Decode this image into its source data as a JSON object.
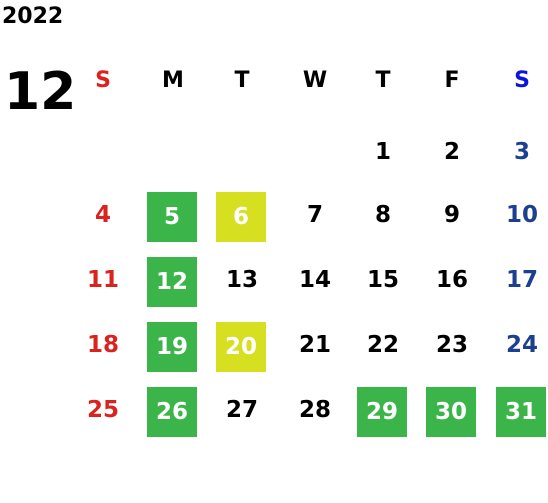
{
  "header": {
    "year": "2022",
    "month": "12"
  },
  "weekdays": [
    "S",
    "M",
    "T",
    "W",
    "T",
    "F",
    "S"
  ],
  "colors": {
    "sunday_header": "#e0201c",
    "saturday_header": "#0a14e0",
    "sunday": "#d9231f",
    "saturday": "#1c3f8f",
    "weekday": "#000000"
  },
  "weeks": [
    [
      null,
      null,
      null,
      null,
      "1",
      "2",
      "3"
    ],
    [
      "4",
      {
        "day": "5",
        "bg": "#3bb54a"
      },
      {
        "day": "6",
        "bg": "#d6e021"
      },
      "7",
      "8",
      "9",
      "10"
    ],
    [
      "11",
      {
        "day": "12",
        "bg": "#3bb54a"
      },
      "13",
      "14",
      "15",
      "16",
      "17"
    ],
    [
      "18",
      {
        "day": "19",
        "bg": "#3bb54a"
      },
      {
        "day": "20",
        "bg": "#d6e021"
      },
      "21",
      "22",
      "23",
      "24"
    ],
    [
      "25",
      {
        "day": "26",
        "bg": "#3bb54a"
      },
      "27",
      "28",
      {
        "day": "29",
        "bg": "#3bb54a"
      },
      {
        "day": "30",
        "bg": "#3bb54a"
      },
      {
        "day": "31",
        "bg": "#3bb54a"
      }
    ]
  ]
}
